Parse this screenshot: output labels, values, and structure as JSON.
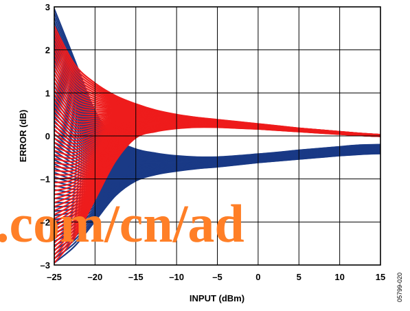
{
  "chart_data": {
    "type": "line",
    "title": "",
    "xlabel": "INPUT (dBm)",
    "ylabel": "ERROR (dB)",
    "xlim": [
      -25,
      15
    ],
    "ylim": [
      -3,
      3
    ],
    "x_ticks": [
      -25,
      -20,
      -15,
      -10,
      -5,
      0,
      5,
      10,
      15
    ],
    "x_tick_labels": [
      "–25",
      "–20",
      "–15",
      "–10",
      "–5",
      "0",
      "5",
      "10",
      "15"
    ],
    "y_ticks": [
      -3,
      -2,
      -1,
      0,
      1,
      2,
      3
    ],
    "y_tick_labels": [
      "–3",
      "–2",
      "–1",
      "0",
      "1",
      "2",
      "3"
    ],
    "grid": true,
    "legend": "none",
    "series_groups": [
      {
        "color": "#1a3a86",
        "count": 60,
        "x": [
          -25,
          -22.5,
          -20,
          -17.5,
          -15,
          -12.5,
          -10,
          -7.5,
          -5,
          -2.5,
          0,
          2.5,
          5,
          7.5,
          10,
          12.5,
          15
        ],
        "envelope_low": [
          -3.0,
          -2.6,
          -2.0,
          -1.4,
          -1.05,
          -0.9,
          -0.82,
          -0.76,
          -0.72,
          -0.67,
          -0.62,
          -0.58,
          -0.54,
          -0.5,
          -0.46,
          -0.43,
          -0.41
        ],
        "envelope_high": [
          3.0,
          1.8,
          0.6,
          -0.05,
          -0.3,
          -0.4,
          -0.46,
          -0.49,
          -0.49,
          -0.46,
          -0.42,
          -0.38,
          -0.33,
          -0.29,
          -0.25,
          -0.21,
          -0.2
        ]
      },
      {
        "color": "#ee1c1c",
        "count": 60,
        "x": [
          -25,
          -22.5,
          -20,
          -17.5,
          -15,
          -12.5,
          -10,
          -7.5,
          -5,
          -2.5,
          0,
          2.5,
          5,
          7.5,
          10,
          12.5,
          15
        ],
        "envelope_low": [
          -3.0,
          -2.4,
          -1.5,
          -0.6,
          -0.05,
          0.1,
          0.17,
          0.2,
          0.2,
          0.18,
          0.16,
          0.13,
          0.1,
          0.07,
          0.04,
          0.01,
          -0.01
        ],
        "envelope_high": [
          2.6,
          1.7,
          1.25,
          0.95,
          0.75,
          0.6,
          0.5,
          0.43,
          0.38,
          0.33,
          0.28,
          0.23,
          0.18,
          0.14,
          0.1,
          0.06,
          0.03
        ]
      }
    ],
    "watermark_text": ".com/cn/ad",
    "figure_code": "05799-020"
  }
}
